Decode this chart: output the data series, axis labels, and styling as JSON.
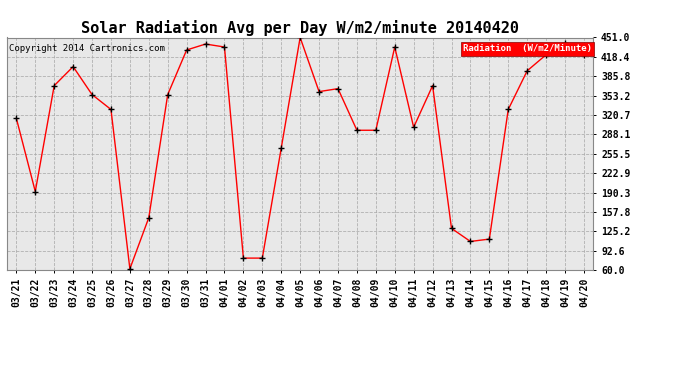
{
  "title": "Solar Radiation Avg per Day W/m2/minute 20140420",
  "copyright": "Copyright 2014 Cartronics.com",
  "legend_label": "Radiation  (W/m2/Minute)",
  "dates": [
    "03/21",
    "03/22",
    "03/23",
    "03/24",
    "03/25",
    "03/26",
    "03/27",
    "03/28",
    "03/29",
    "03/30",
    "03/31",
    "04/01",
    "04/02",
    "04/03",
    "04/04",
    "04/05",
    "04/06",
    "04/07",
    "04/08",
    "04/09",
    "04/10",
    "04/11",
    "04/12",
    "04/13",
    "04/14",
    "04/15",
    "04/16",
    "04/17",
    "04/18",
    "04/19",
    "04/20"
  ],
  "values": [
    315,
    192,
    370,
    402,
    355,
    330,
    62,
    148,
    355,
    430,
    440,
    435,
    80,
    80,
    265,
    451,
    360,
    365,
    295,
    295,
    435,
    300,
    370,
    130,
    108,
    112,
    330,
    395,
    422,
    441,
    422
  ],
  "ylim": [
    60.0,
    451.0
  ],
  "yticks": [
    451.0,
    418.4,
    385.8,
    353.2,
    320.7,
    288.1,
    255.5,
    222.9,
    190.3,
    157.8,
    125.2,
    92.6,
    60.0
  ],
  "line_color": "red",
  "marker_color": "black",
  "bg_color": "#ffffff",
  "plot_bg_color": "#e8e8e8",
  "grid_color": "#aaaaaa",
  "title_fontsize": 11,
  "tick_fontsize": 7,
  "legend_bg": "red",
  "legend_text_color": "white"
}
